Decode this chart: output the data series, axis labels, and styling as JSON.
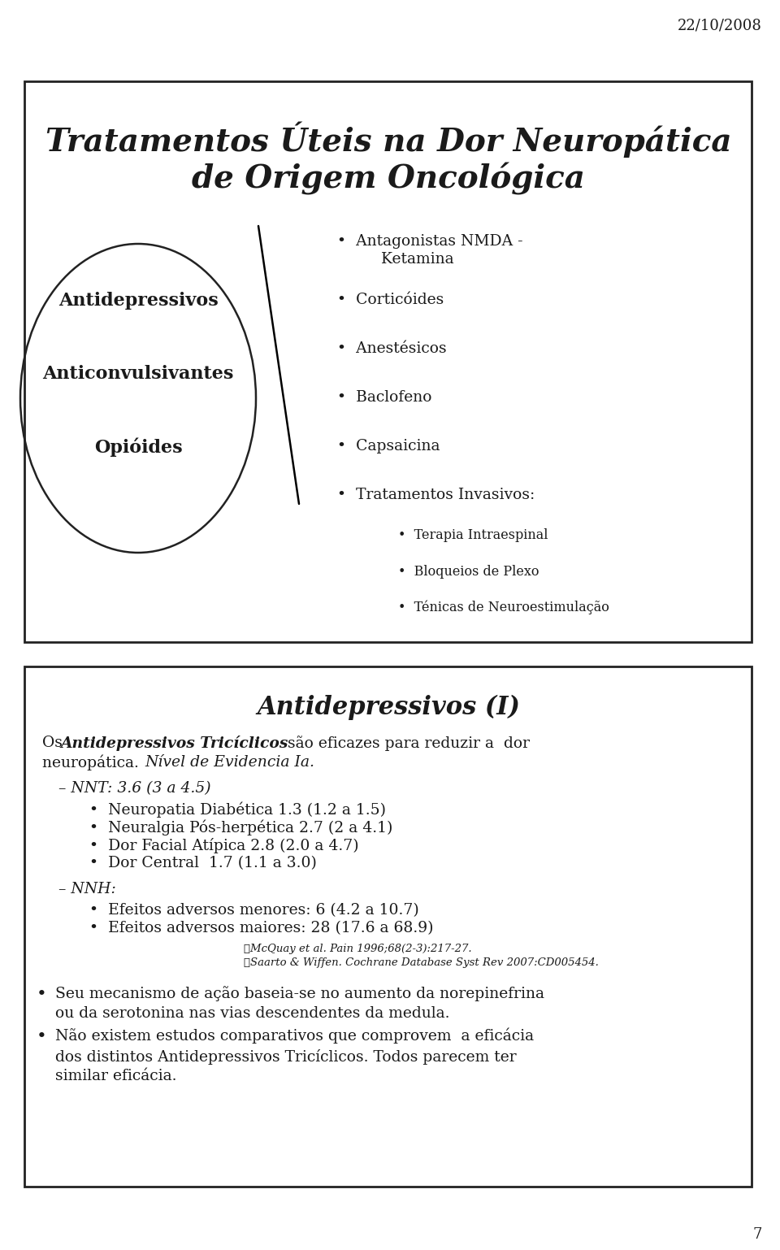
{
  "date_text": "22/10/2008",
  "page_number": "7",
  "slide_title_line1": "Tratamentos Úteis na Dor Neuropática",
  "slide_title_line2": "de Origem Oncológica",
  "ellipse_lines": [
    "Antidepressivos",
    "Anticonvulsivantes",
    "Opióides"
  ],
  "bullet_items_main": [
    "Antagonistas NMDA -\n         Ketamina",
    "Corticóides",
    "Anestésicos",
    "Baclofeno",
    "Capsaicina",
    "Tratamentos Invasivos:"
  ],
  "bullet_items_sub": [
    "Terapia Intraespinal",
    "Bloqueios de Plexo",
    "Ténicas de Neuroestimulação"
  ],
  "section2_title": "Antidepressivos (I)",
  "nnt_header": "– NNT: 3.6 (3 a 4.5)",
  "nnt_items": [
    "Neuropatia Diabética 1.3 (1.2 a 1.5)",
    "Neuralgia Pós-herpética 2.7 (2 a 4.1)",
    "Dor Facial Atípica 2.8 (2.0 a 4.7)",
    "Dor Central  1.7 (1.1 a 3.0)"
  ],
  "nnh_header": "– NNH:",
  "nnh_items": [
    "Efeitos adversos menores: 6 (4.2 a 10.7)",
    "Efeitos adversos maiores: 28 (17.6 a 68.9)"
  ],
  "ref_lines": [
    "➤McQuay et al. Pain 1996;68(2-3):217-27.",
    "➤Saarto & Wiffen. Cochrane Database Syst Rev 2007:CD005454."
  ],
  "bullet3": "Seu mecanismo de ação baseia-se no aumento da norepinefrina\nou da serotonina nas vias descendentes da medula.",
  "bullet4": "Não existem estudos comparativos que comprovem  a eficácia\ndos distintos Antidepressivos Tricíclicos. Todos parecem ter\nsimilar eficácia.",
  "bg_color": "#ffffff",
  "text_color": "#1a1a1a",
  "box_border_color": "#222222",
  "ellipse_color": "#222222",
  "title_fontsize": 28,
  "body_fontsize": 13.5,
  "small_fontsize": 10
}
